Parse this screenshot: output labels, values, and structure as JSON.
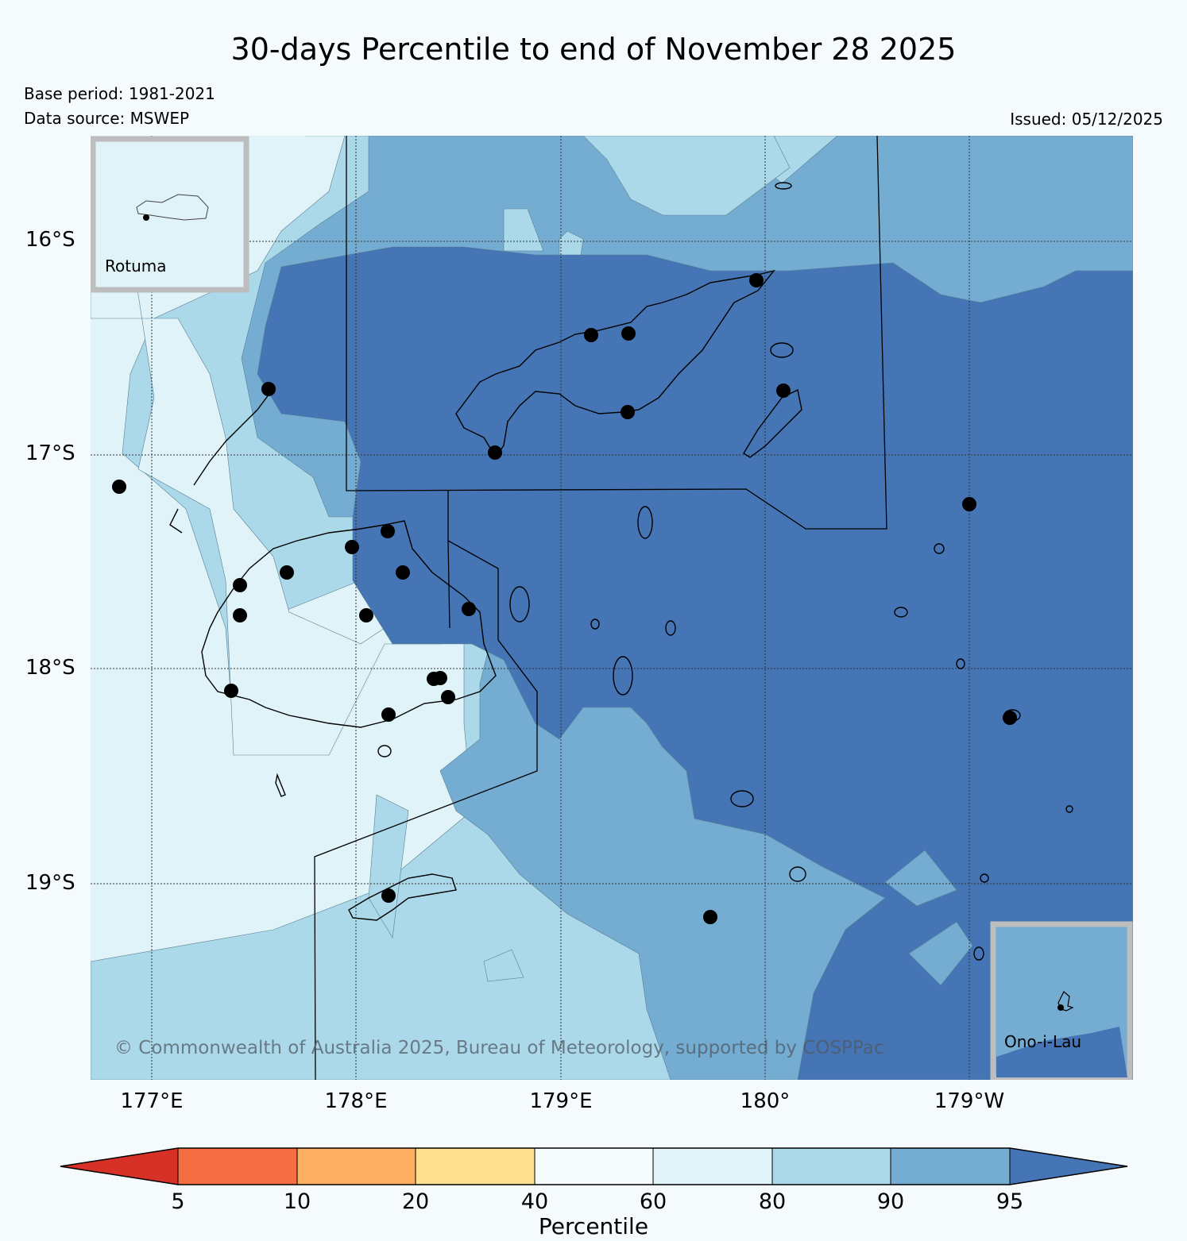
{
  "header": {
    "title": "30-days Percentile to end of November 28 2025",
    "base_period": "Base period: 1981-2021",
    "data_source": "Data source: MSWEP",
    "issued": "Issued: 05/12/2025"
  },
  "axes": {
    "lat_labels": [
      "16°S",
      "17°S",
      "18°S",
      "19°S"
    ],
    "lon_labels": [
      "177°E",
      "178°E",
      "179°E",
      "180°",
      "179°W"
    ]
  },
  "insets": {
    "rotuma": "Rotuma",
    "ono_i_lau": "Ono-i-Lau"
  },
  "copyright": "© Commonwealth of Australia 2025, Bureau of Meteorology, supported by COSPPac",
  "colorbar": {
    "label": "Percentile",
    "ticks": [
      "5",
      "10",
      "20",
      "40",
      "60",
      "80",
      "90",
      "95"
    ],
    "colors": {
      "below_5": "#d73027",
      "p5_10": "#f46d43",
      "p10_20": "#fdae61",
      "p20_40": "#fee090",
      "p40_60": "#f5fafd",
      "p60_80": "#e0f3f8",
      "p80_90": "#abd9e9",
      "p90_95": "#74add1",
      "above_95": "#4575b4"
    }
  }
}
